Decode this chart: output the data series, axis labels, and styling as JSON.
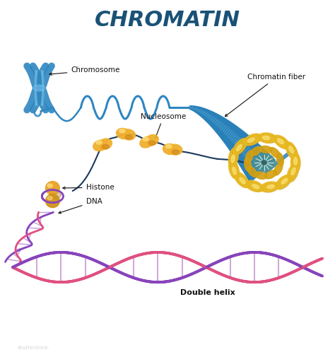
{
  "title": "CHROMATIN",
  "title_color": "#1a5276",
  "title_fontsize": 22,
  "bg_color": "#ffffff",
  "labels": {
    "chromosome": "Chromosome",
    "chromatin_fiber": "Chromatin fiber",
    "nucleosome": "Nucleosome",
    "histone": "Histone",
    "dna": "DNA",
    "double_helix": "Double helix"
  },
  "chr_color": "#2e86c1",
  "fiber_color": "#2980b9",
  "nuc_color": "#f0b030",
  "nuc_shadow": "#c07010",
  "nuc_hi": "#ffe080",
  "teal_color": "#5b9e9e",
  "dna_color1": "#8844bb",
  "dna_color2": "#e05080",
  "label_fontsize": 7.5,
  "label_color": "#111111",
  "dark_blue": "#1a3a5c"
}
